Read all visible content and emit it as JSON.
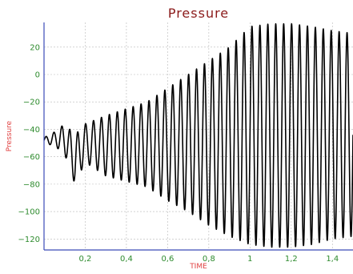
{
  "chart_data": {
    "type": "line",
    "title": "Pressure",
    "xlabel": "TIME",
    "ylabel": "Pressure",
    "xlim": [
      0,
      1.5
    ],
    "ylim": [
      -128,
      38
    ],
    "x_ticks": [
      0.2,
      0.4,
      0.6,
      0.8,
      1,
      1.2,
      1.4
    ],
    "x_tick_labels": [
      "0,2",
      "0,4",
      "0,6",
      "0,8",
      "1",
      "1,2",
      "1,4"
    ],
    "y_ticks": [
      20,
      0,
      -20,
      -40,
      -60,
      -80,
      -100,
      -120
    ],
    "y_tick_labels": [
      "20",
      "0",
      "−20",
      "−40",
      "−60",
      "−80",
      "−100",
      "−120"
    ],
    "grid": true,
    "series": [
      {
        "color": "#000000",
        "description_of_values": "oscillating pressure signal",
        "envelope_x": [
          0.0,
          0.05,
          0.1,
          0.15,
          0.2,
          0.3,
          0.4,
          0.5,
          0.6,
          0.7,
          0.8,
          0.9,
          1.0,
          1.1,
          1.2,
          1.3,
          1.4,
          1.5
        ],
        "envelope_max": [
          -46,
          -42,
          -36,
          -44,
          -36,
          -30,
          -25,
          -20,
          -10,
          0,
          10,
          20,
          35,
          37,
          37,
          35,
          32,
          30
        ],
        "envelope_min": [
          -50,
          -52,
          -58,
          -80,
          -64,
          -74,
          -78,
          -82,
          -92,
          -100,
          -110,
          -118,
          -124,
          -126,
          -126,
          -124,
          -120,
          -118
        ],
        "cycles_per_unit_time": 26
      }
    ]
  }
}
